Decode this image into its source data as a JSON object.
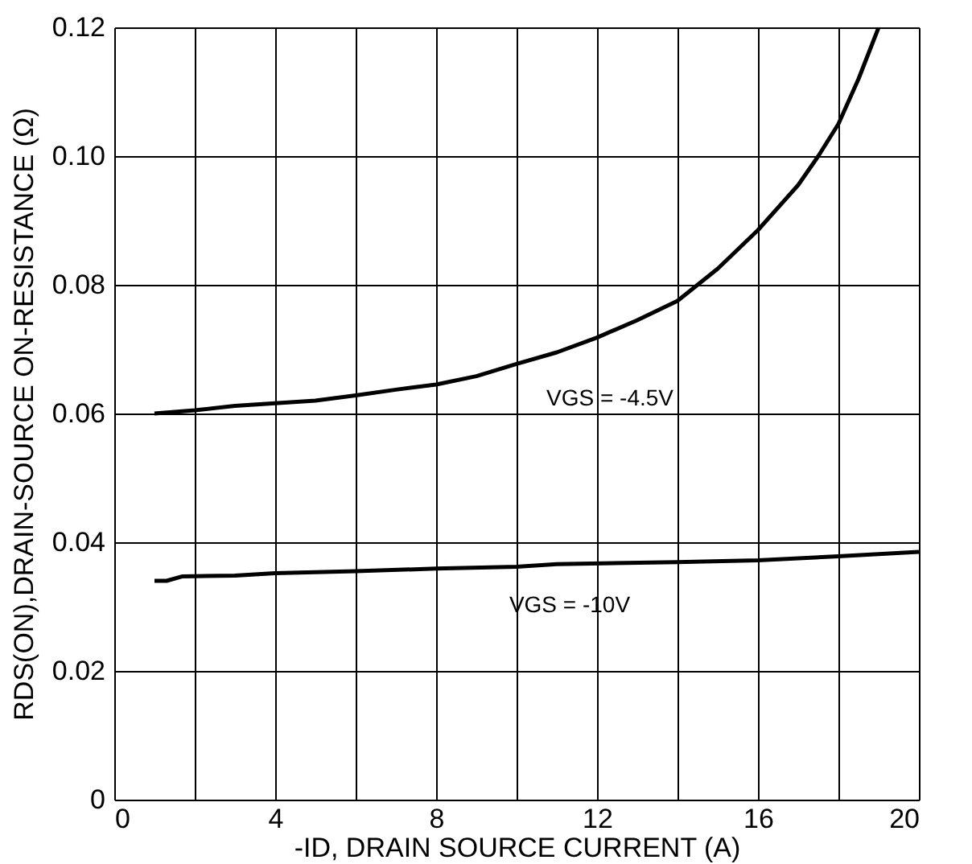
{
  "chart_data": {
    "type": "line",
    "xlabel": "-ID, DRAIN SOURCE CURRENT (A)",
    "ylabel": "RDS(ON),DRAIN-SOURCE ON-RESISTANCE (Ω)",
    "xlim": [
      0,
      20
    ],
    "ylim": [
      0,
      0.12
    ],
    "xticks": [
      0,
      {
        "value": 2,
        "label": null
      },
      4,
      {
        "value": 6,
        "label": null
      },
      8,
      {
        "value": 10,
        "label": null
      },
      12,
      {
        "value": 14,
        "label": null
      },
      16,
      {
        "value": 18,
        "label": null
      },
      20
    ],
    "yticks": [
      0,
      0.02,
      0.04,
      0.06,
      0.08,
      {
        "value": 0.1,
        "label": "0.10"
      },
      0.12
    ],
    "grid": true,
    "marker": "none",
    "line_style": "solid",
    "series": [
      {
        "name": "VGS = -4.5V",
        "color": "#000000",
        "x": [
          1,
          2,
          3,
          4,
          5,
          6,
          7,
          8,
          9,
          10,
          11,
          12,
          13,
          14,
          15,
          16,
          17,
          17.5,
          18,
          18.5,
          19
        ],
        "values": [
          0.06,
          0.0605,
          0.0612,
          0.0616,
          0.062,
          0.0628,
          0.0637,
          0.0645,
          0.0658,
          0.0677,
          0.0695,
          0.0718,
          0.0745,
          0.0775,
          0.0825,
          0.0885,
          0.0955,
          0.1,
          0.105,
          0.112,
          0.12
        ]
      },
      {
        "name": "VGS = -10V",
        "color": "#000000",
        "x": [
          1,
          1.3,
          1.7,
          3,
          4,
          6,
          8,
          10,
          11,
          14,
          16,
          18,
          20
        ],
        "values": [
          0.034,
          0.034,
          0.0347,
          0.0348,
          0.0352,
          0.0355,
          0.0359,
          0.0362,
          0.0366,
          0.0369,
          0.0372,
          0.0378,
          0.0385
        ]
      }
    ]
  }
}
